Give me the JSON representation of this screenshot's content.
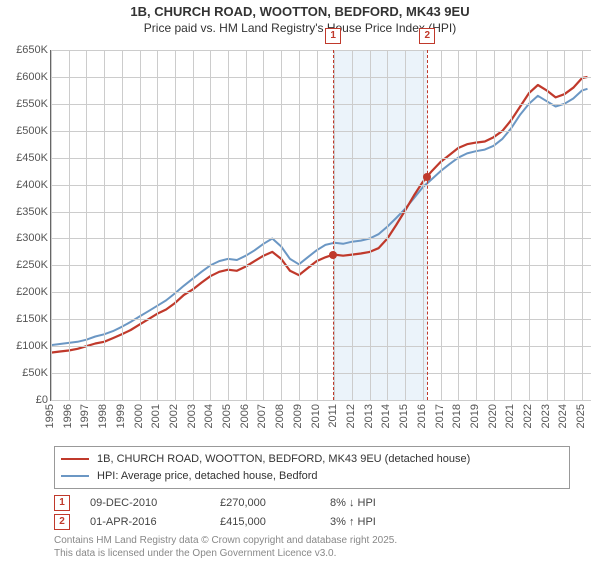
{
  "title_line1": "1B, CHURCH ROAD, WOOTTON, BEDFORD, MK43 9EU",
  "title_line2": "Price paid vs. HM Land Registry's House Price Index (HPI)",
  "chart": {
    "type": "line",
    "background_color": "#ffffff",
    "grid_color": "#cccccc",
    "axis_color": "#666666",
    "x": {
      "min": 1995,
      "max": 2025.5,
      "ticks": [
        1995,
        1996,
        1997,
        1998,
        1999,
        2000,
        2001,
        2002,
        2003,
        2004,
        2005,
        2006,
        2007,
        2008,
        2009,
        2010,
        2011,
        2012,
        2013,
        2014,
        2015,
        2016,
        2017,
        2018,
        2019,
        2020,
        2021,
        2022,
        2023,
        2024,
        2025
      ]
    },
    "y": {
      "min": 0,
      "max": 650,
      "ticks": [
        0,
        50,
        100,
        150,
        200,
        250,
        300,
        350,
        400,
        450,
        500,
        550,
        600,
        650
      ],
      "tick_prefix": "£",
      "tick_suffix": "K"
    },
    "band": {
      "from": 2010.94,
      "to": 2016.25,
      "color": "#dbe9f5"
    },
    "markers": [
      {
        "label": "1",
        "year": 2010.94,
        "price": 270
      },
      {
        "label": "2",
        "year": 2016.25,
        "price": 415
      }
    ],
    "series": [
      {
        "name": "1B, CHURCH ROAD, WOOTTON, BEDFORD, MK43 9EU (detached house)",
        "color": "#c0392b",
        "width": 2.2,
        "points": [
          [
            1995,
            88
          ],
          [
            1995.5,
            90
          ],
          [
            1996,
            92
          ],
          [
            1996.5,
            95
          ],
          [
            1997,
            100
          ],
          [
            1997.5,
            105
          ],
          [
            1998,
            108
          ],
          [
            1998.5,
            115
          ],
          [
            1999,
            122
          ],
          [
            1999.5,
            130
          ],
          [
            2000,
            140
          ],
          [
            2000.5,
            150
          ],
          [
            2001,
            160
          ],
          [
            2001.5,
            168
          ],
          [
            2002,
            180
          ],
          [
            2002.5,
            195
          ],
          [
            2003,
            205
          ],
          [
            2003.5,
            218
          ],
          [
            2004,
            230
          ],
          [
            2004.5,
            238
          ],
          [
            2005,
            242
          ],
          [
            2005.5,
            240
          ],
          [
            2006,
            248
          ],
          [
            2006.5,
            258
          ],
          [
            2007,
            268
          ],
          [
            2007.5,
            275
          ],
          [
            2008,
            262
          ],
          [
            2008.5,
            240
          ],
          [
            2009,
            232
          ],
          [
            2009.5,
            245
          ],
          [
            2010,
            258
          ],
          [
            2010.5,
            265
          ],
          [
            2010.94,
            270
          ],
          [
            2011,
            270
          ],
          [
            2011.5,
            268
          ],
          [
            2012,
            270
          ],
          [
            2012.5,
            272
          ],
          [
            2013,
            275
          ],
          [
            2013.5,
            282
          ],
          [
            2014,
            300
          ],
          [
            2014.5,
            325
          ],
          [
            2015,
            352
          ],
          [
            2015.5,
            380
          ],
          [
            2016,
            405
          ],
          [
            2016.25,
            415
          ],
          [
            2016.5,
            425
          ],
          [
            2017,
            442
          ],
          [
            2017.5,
            455
          ],
          [
            2018,
            468
          ],
          [
            2018.5,
            475
          ],
          [
            2019,
            478
          ],
          [
            2019.5,
            480
          ],
          [
            2020,
            488
          ],
          [
            2020.5,
            500
          ],
          [
            2021,
            520
          ],
          [
            2021.5,
            545
          ],
          [
            2022,
            570
          ],
          [
            2022.5,
            585
          ],
          [
            2023,
            575
          ],
          [
            2023.5,
            562
          ],
          [
            2024,
            568
          ],
          [
            2024.5,
            580
          ],
          [
            2025,
            598
          ],
          [
            2025.3,
            600
          ]
        ]
      },
      {
        "name": "HPI: Average price, detached house, Bedford",
        "color": "#6b97c4",
        "width": 2,
        "points": [
          [
            1995,
            102
          ],
          [
            1995.5,
            104
          ],
          [
            1996,
            106
          ],
          [
            1996.5,
            108
          ],
          [
            1997,
            112
          ],
          [
            1997.5,
            118
          ],
          [
            1998,
            122
          ],
          [
            1998.5,
            128
          ],
          [
            1999,
            136
          ],
          [
            1999.5,
            145
          ],
          [
            2000,
            155
          ],
          [
            2000.5,
            165
          ],
          [
            2001,
            175
          ],
          [
            2001.5,
            185
          ],
          [
            2002,
            198
          ],
          [
            2002.5,
            212
          ],
          [
            2003,
            225
          ],
          [
            2003.5,
            238
          ],
          [
            2004,
            250
          ],
          [
            2004.5,
            258
          ],
          [
            2005,
            262
          ],
          [
            2005.5,
            260
          ],
          [
            2006,
            268
          ],
          [
            2006.5,
            278
          ],
          [
            2007,
            290
          ],
          [
            2007.5,
            300
          ],
          [
            2008,
            285
          ],
          [
            2008.5,
            262
          ],
          [
            2009,
            252
          ],
          [
            2009.5,
            265
          ],
          [
            2010,
            278
          ],
          [
            2010.5,
            288
          ],
          [
            2011,
            292
          ],
          [
            2011.5,
            290
          ],
          [
            2012,
            294
          ],
          [
            2012.5,
            296
          ],
          [
            2013,
            300
          ],
          [
            2013.5,
            308
          ],
          [
            2014,
            322
          ],
          [
            2014.5,
            338
          ],
          [
            2015,
            355
          ],
          [
            2015.5,
            375
          ],
          [
            2016,
            395
          ],
          [
            2016.5,
            410
          ],
          [
            2017,
            425
          ],
          [
            2017.5,
            438
          ],
          [
            2018,
            450
          ],
          [
            2018.5,
            458
          ],
          [
            2019,
            462
          ],
          [
            2019.5,
            465
          ],
          [
            2020,
            472
          ],
          [
            2020.5,
            485
          ],
          [
            2021,
            505
          ],
          [
            2021.5,
            530
          ],
          [
            2022,
            550
          ],
          [
            2022.5,
            565
          ],
          [
            2023,
            555
          ],
          [
            2023.5,
            545
          ],
          [
            2024,
            550
          ],
          [
            2024.5,
            560
          ],
          [
            2025,
            575
          ],
          [
            2025.3,
            578
          ]
        ]
      }
    ]
  },
  "legend": [
    {
      "color": "#c0392b",
      "label": "1B, CHURCH ROAD, WOOTTON, BEDFORD, MK43 9EU (detached house)"
    },
    {
      "color": "#6b97c4",
      "label": "HPI: Average price, detached house, Bedford"
    }
  ],
  "events": [
    {
      "n": "1",
      "date": "09-DEC-2010",
      "price": "£270,000",
      "delta": "8% ↓ HPI"
    },
    {
      "n": "2",
      "date": "01-APR-2016",
      "price": "£415,000",
      "delta": "3% ↑ HPI"
    }
  ],
  "copyright_l1": "Contains HM Land Registry data © Crown copyright and database right 2025.",
  "copyright_l2": "This data is licensed under the Open Government Licence v3.0."
}
